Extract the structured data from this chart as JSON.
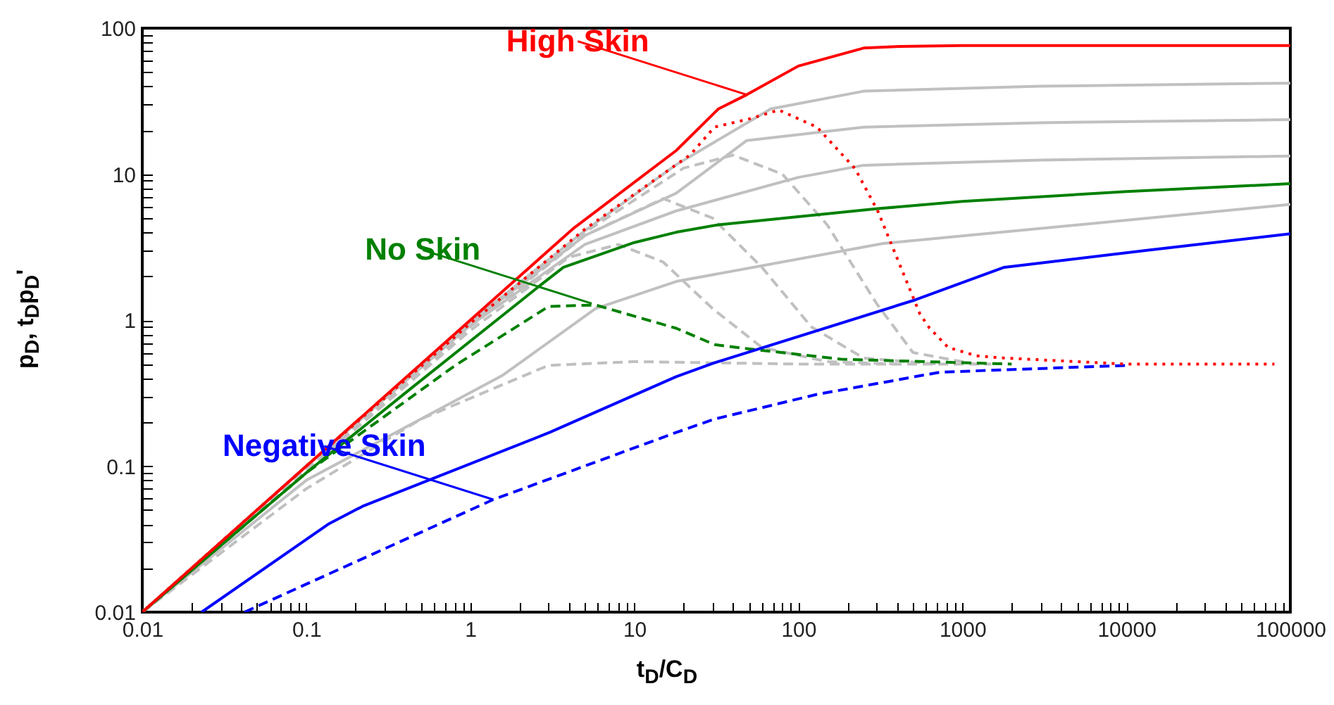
{
  "chart_data": {
    "type": "line",
    "xlabel": "t$_{D}$/C$_{D}$",
    "ylabel": "p$_{D}$, t$_{D}$p$_{D}$'",
    "log": "xy",
    "xlim": [
      0.01,
      100000
    ],
    "ylim": [
      0.01,
      100
    ],
    "xticks": [
      0.01,
      {
        "value": 0.02,
        "label": null
      },
      {
        "value": 0.03,
        "label": null
      },
      {
        "value": 0.04,
        "label": null
      },
      {
        "value": 0.05,
        "label": null
      },
      {
        "value": 0.06,
        "label": null
      },
      {
        "value": 0.07,
        "label": null
      },
      {
        "value": 0.08,
        "label": null
      },
      {
        "value": 0.09,
        "label": null
      },
      0.1,
      {
        "value": 0.2,
        "label": null
      },
      {
        "value": 0.3,
        "label": null
      },
      {
        "value": 0.4,
        "label": null
      },
      {
        "value": 0.5,
        "label": null
      },
      {
        "value": 0.6,
        "label": null
      },
      {
        "value": 0.7,
        "label": null
      },
      {
        "value": 0.8,
        "label": null
      },
      {
        "value": 0.9,
        "label": null
      },
      1,
      {
        "value": 2,
        "label": null
      },
      {
        "value": 3,
        "label": null
      },
      {
        "value": 4,
        "label": null
      },
      {
        "value": 5,
        "label": null
      },
      {
        "value": 6,
        "label": null
      },
      {
        "value": 7,
        "label": null
      },
      {
        "value": 8,
        "label": null
      },
      {
        "value": 9,
        "label": null
      },
      10,
      {
        "value": 20,
        "label": null
      },
      {
        "value": 30,
        "label": null
      },
      {
        "value": 40,
        "label": null
      },
      {
        "value": 50,
        "label": null
      },
      {
        "value": 60,
        "label": null
      },
      {
        "value": 70,
        "label": null
      },
      {
        "value": 80,
        "label": null
      },
      {
        "value": 90,
        "label": null
      },
      100,
      {
        "value": 200,
        "label": null
      },
      {
        "value": 300,
        "label": null
      },
      {
        "value": 400,
        "label": null
      },
      {
        "value": 500,
        "label": null
      },
      {
        "value": 600,
        "label": null
      },
      {
        "value": 700,
        "label": null
      },
      {
        "value": 800,
        "label": null
      },
      {
        "value": 900,
        "label": null
      },
      1000,
      {
        "value": 2000,
        "label": null
      },
      {
        "value": 3000,
        "label": null
      },
      {
        "value": 4000,
        "label": null
      },
      {
        "value": 5000,
        "label": null
      },
      {
        "value": 6000,
        "label": null
      },
      {
        "value": 7000,
        "label": null
      },
      {
        "value": 8000,
        "label": null
      },
      {
        "value": 9000,
        "label": null
      },
      10000,
      {
        "value": 20000,
        "label": null
      },
      {
        "value": 30000,
        "label": null
      },
      {
        "value": 40000,
        "label": null
      },
      {
        "value": 50000,
        "label": null
      },
      {
        "value": 60000,
        "label": null
      },
      {
        "value": 70000,
        "label": null
      },
      {
        "value": 80000,
        "label": null
      },
      {
        "value": 90000,
        "label": null
      },
      100000
    ],
    "yticks": [
      0.01,
      {
        "value": 0.02,
        "label": null
      },
      {
        "value": 0.03,
        "label": null
      },
      {
        "value": 0.04,
        "label": null
      },
      {
        "value": 0.05,
        "label": null
      },
      {
        "value": 0.06,
        "label": null
      },
      {
        "value": 0.07,
        "label": null
      },
      {
        "value": 0.08,
        "label": null
      },
      {
        "value": 0.09,
        "label": null
      },
      0.1,
      {
        "value": 0.2,
        "label": null
      },
      {
        "value": 0.3,
        "label": null
      },
      {
        "value": 0.4,
        "label": null
      },
      {
        "value": 0.5,
        "label": null
      },
      {
        "value": 0.6,
        "label": null
      },
      {
        "value": 0.7,
        "label": null
      },
      {
        "value": 0.8,
        "label": null
      },
      {
        "value": 0.9,
        "label": null
      },
      1,
      {
        "value": 2,
        "label": null
      },
      {
        "value": 3,
        "label": null
      },
      {
        "value": 4,
        "label": null
      },
      {
        "value": 5,
        "label": null
      },
      {
        "value": 6,
        "label": null
      },
      {
        "value": 7,
        "label": null
      },
      {
        "value": 8,
        "label": null
      },
      {
        "value": 9,
        "label": null
      },
      10,
      {
        "value": 20,
        "label": null
      },
      {
        "value": 30,
        "label": null
      },
      {
        "value": 40,
        "label": null
      },
      {
        "value": 50,
        "label": null
      },
      {
        "value": 60,
        "label": null
      },
      {
        "value": 70,
        "label": null
      },
      {
        "value": 80,
        "label": null
      },
      {
        "value": 90,
        "label": null
      },
      100
    ],
    "series": [
      {
        "line_style": "solid",
        "color": "#c0c0c0",
        "x": [
          0.01,
          0.1,
          1,
          5,
          18,
          68,
          250,
          3000,
          100000
        ],
        "values": [
          0.01,
          0.1,
          0.97,
          4.1,
          11.6,
          28,
          37,
          40,
          42
        ]
      },
      {
        "line_style": "solid",
        "color": "#c0c0c0",
        "x": [
          0.01,
          0.1,
          1,
          5,
          18,
          48.5,
          250,
          3000,
          100000
        ],
        "values": [
          0.01,
          0.1,
          0.95,
          3.8,
          7.4,
          17,
          21,
          22.5,
          23.6
        ]
      },
      {
        "line_style": "solid",
        "color": "#c0c0c0",
        "x": [
          0.01,
          0.1,
          1,
          5,
          18,
          100,
          250,
          3000,
          100000
        ],
        "values": [
          0.01,
          0.1,
          0.92,
          3.3,
          5.6,
          9.5,
          11.5,
          12.5,
          13.3
        ]
      },
      {
        "line_style": "solid",
        "color": "#c0c0c0",
        "x": [
          0.01,
          0.1,
          1.58,
          5.8,
          18,
          330,
          100000
        ],
        "values": [
          0.01,
          0.08,
          0.42,
          1.2,
          1.84,
          3.35,
          6.2
        ]
      },
      {
        "line_style": "dashed",
        "color": "#c0c0c0",
        "x": [
          0.01,
          1,
          5,
          20,
          40,
          80,
          150,
          300,
          500,
          1200
        ],
        "values": [
          0.01,
          0.95,
          4,
          11,
          13.5,
          10,
          4.5,
          1.3,
          0.6,
          0.5
        ]
      },
      {
        "line_style": "dashed",
        "color": "#c0c0c0",
        "x": [
          0.01,
          1,
          5,
          15,
          30,
          60,
          120,
          250,
          700
        ],
        "values": [
          0.01,
          0.9,
          3.8,
          6.8,
          5,
          2.3,
          0.9,
          0.55,
          0.5
        ]
      },
      {
        "line_style": "dashed",
        "color": "#c0c0c0",
        "x": [
          0.01,
          1,
          4,
          8,
          15,
          30,
          60,
          150,
          400
        ],
        "values": [
          0.01,
          0.85,
          2.7,
          3.3,
          2.5,
          1.2,
          0.65,
          0.52,
          0.5
        ]
      },
      {
        "line_style": "dashed",
        "color": "#c0c0c0",
        "x": [
          0.01,
          0.1,
          0.5,
          3,
          10,
          100,
          1500
        ],
        "values": [
          0.01,
          0.07,
          0.21,
          0.49,
          0.52,
          0.5,
          0.5
        ]
      },
      {
        "line_style": "solid",
        "color": "#008000",
        "x": [
          0.01,
          0.1,
          0.42,
          2.65,
          3.7,
          10,
          18,
          32.6,
          305,
          1000,
          10000,
          100000
        ],
        "values": [
          0.01,
          0.09,
          0.33,
          1.72,
          2.3,
          3.4,
          4.0,
          4.5,
          5.8,
          6.5,
          7.6,
          8.6
        ]
      },
      {
        "line_style": "dashed",
        "color": "#008000",
        "x": [
          0.01,
          0.1,
          0.81,
          3,
          5.8,
          18,
          30.8,
          42,
          182,
          2000
        ],
        "values": [
          0.01,
          0.09,
          0.49,
          1.24,
          1.27,
          0.88,
          0.68,
          0.65,
          0.54,
          0.5
        ]
      },
      {
        "line_style": "solid",
        "color": "#0000ff",
        "x": [
          0.023,
          0.136,
          0.22,
          3.04,
          18,
          30.8,
          520,
          1800,
          13100,
          100000
        ],
        "values": [
          0.01,
          0.04,
          0.053,
          0.17,
          0.41,
          0.51,
          1.38,
          2.3,
          3.0,
          3.9
        ]
      },
      {
        "line_style": "dashed",
        "color": "#0000ff",
        "x": [
          0.042,
          1.38,
          18,
          30.8,
          130,
          730,
          10100
        ],
        "values": [
          0.01,
          0.059,
          0.17,
          0.21,
          0.31,
          0.44,
          0.49
        ]
      },
      {
        "line_style": "solid",
        "color": "#ff0000",
        "x": [
          0.01,
          0.1,
          1,
          4.2,
          18,
          32.6,
          48.5,
          100,
          250,
          420,
          1000,
          10000,
          100000
        ],
        "values": [
          0.01,
          0.1,
          1,
          4.2,
          14.5,
          28,
          35,
          55,
          73,
          75,
          76,
          76,
          76
        ]
      },
      {
        "line_style": "dotted",
        "color": "#ff0000",
        "x": [
          0.01,
          0.1,
          1,
          5,
          22,
          30.8,
          51,
          76,
          130,
          222,
          305,
          552,
          630,
          820,
          1220,
          1800,
          10000,
          80000
        ],
        "values": [
          0.01,
          0.1,
          0.95,
          4.2,
          13.6,
          21,
          24,
          27.5,
          21,
          10.9,
          5.6,
          1.1,
          0.885,
          0.65,
          0.57,
          0.55,
          0.5,
          0.5
        ]
      }
    ],
    "annotations": [
      {
        "text": "High Skin",
        "x": 48.5,
        "y": 35
      },
      {
        "text": "No Skin",
        "x": 5.5,
        "y": 1.3
      },
      {
        "text": "Negative Skin",
        "x": 1.38,
        "y": 0.059
      }
    ]
  }
}
